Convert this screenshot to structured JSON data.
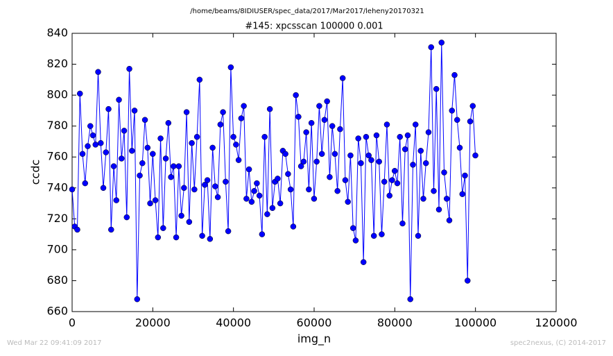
{
  "chart_data": {
    "type": "line",
    "suptitle": "/home/beams/8IDIUSER/spec_data/2017/Mar2017/leheny20170321",
    "title": "#145: xpcsscan 100000 0.001",
    "xlabel": "img_n",
    "ylabel": "ccdc",
    "footer_left": "Wed Mar 22 09:41:09 2017",
    "footer_right": "spec2nexus, (C) 2014-2017",
    "xlim": [
      0,
      120000
    ],
    "xticks": [
      0,
      20000,
      40000,
      60000,
      80000,
      100000,
      120000
    ],
    "ylim": [
      660,
      840
    ],
    "yticks": [
      660,
      680,
      700,
      720,
      740,
      760,
      780,
      800,
      820,
      840
    ],
    "grid": false,
    "x": [
      0,
      645,
      1290,
      1935,
      2580,
      3225,
      3870,
      4515,
      5160,
      5805,
      6450,
      7095,
      7740,
      8385,
      9030,
      9675,
      10320,
      10965,
      11610,
      12255,
      12900,
      13545,
      14190,
      14835,
      15480,
      16125,
      16770,
      17415,
      18060,
      18705,
      19350,
      19995,
      20640,
      21285,
      21930,
      22575,
      23220,
      23865,
      24510,
      25155,
      25800,
      26445,
      27090,
      27735,
      28380,
      29025,
      29670,
      30315,
      30960,
      31605,
      32250,
      32895,
      33540,
      34185,
      34830,
      35475,
      36120,
      36765,
      37410,
      38055,
      38700,
      39345,
      39990,
      40635,
      41280,
      41925,
      42570,
      43215,
      43860,
      44505,
      45150,
      45795,
      46440,
      47085,
      47730,
      48375,
      49020,
      49665,
      50310,
      50955,
      51600,
      52245,
      52890,
      53535,
      54180,
      54825,
      55470,
      56115,
      56760,
      57405,
      58050,
      58695,
      59340,
      59985,
      60630,
      61275,
      61920,
      62565,
      63210,
      63855,
      64500,
      65145,
      65790,
      66435,
      67080,
      67725,
      68370,
      69015,
      69660,
      70305,
      70950,
      71595,
      72240,
      72885,
      73530,
      74175,
      74820,
      75465,
      76110,
      76755,
      77400,
      78045,
      78690,
      79335,
      79980,
      80625,
      81270,
      81915,
      82560,
      83205,
      83850,
      84495,
      85140,
      85785,
      86430,
      87075,
      87720,
      88365,
      89010,
      89655,
      90300,
      90945,
      91590,
      92235,
      92880,
      93525,
      94170,
      94815,
      95460,
      96105,
      96750,
      97395,
      98040,
      98685,
      99330,
      99975
    ],
    "series": [
      {
        "name": "ccdc",
        "color": "#0000ff",
        "values": [
          739,
          715,
          713,
          801,
          762,
          743,
          767,
          780,
          774,
          768,
          815,
          769,
          740,
          763,
          791,
          713,
          754,
          732,
          797,
          759,
          777,
          721,
          817,
          764,
          790,
          668,
          748,
          756,
          784,
          766,
          730,
          762,
          732,
          708,
          772,
          714,
          759,
          782,
          747,
          754,
          708,
          754,
          722,
          740,
          789,
          718,
          769,
          739,
          773,
          810,
          709,
          742,
          745,
          707,
          766,
          741,
          734,
          781,
          789,
          744,
          712,
          818,
          773,
          768,
          758,
          785,
          793,
          733,
          752,
          731,
          738,
          743,
          735,
          710,
          773,
          723,
          791,
          727,
          744,
          746,
          730,
          764,
          762,
          749,
          739,
          715,
          800,
          786,
          754,
          757,
          776,
          739,
          782,
          733,
          757,
          793,
          762,
          784,
          796,
          747,
          780,
          762,
          738,
          778,
          811,
          745,
          731,
          761,
          714,
          706,
          772,
          756,
          692,
          773,
          761,
          758,
          709,
          774,
          757,
          710,
          744,
          781,
          735,
          745,
          751,
          743,
          773,
          717,
          765,
          774,
          668,
          755,
          781,
          709,
          764,
          733,
          756,
          776,
          831,
          738,
          804,
          726,
          834,
          750,
          733,
          719,
          790,
          813,
          784,
          766,
          736,
          748,
          680,
          783,
          793,
          761
        ]
      }
    ]
  }
}
